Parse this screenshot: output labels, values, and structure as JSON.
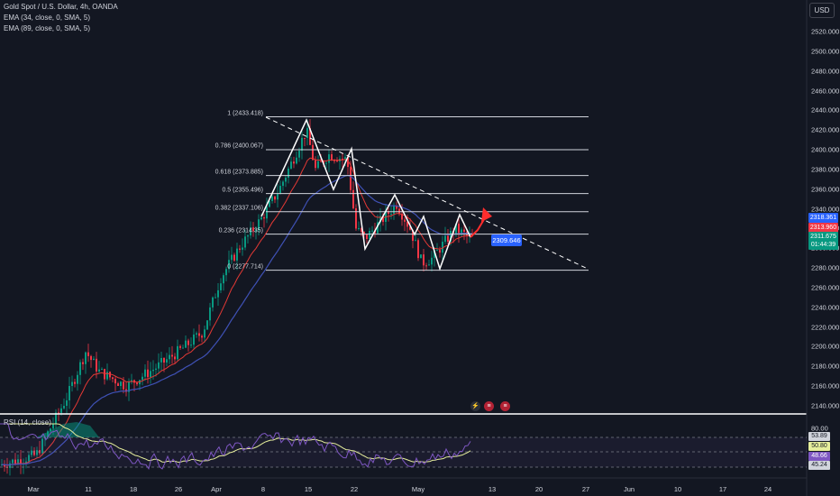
{
  "legend": {
    "symbol": "Gold Spot / U.S. Dollar, 4h, OANDA",
    "ema1": "EMA (34, close, 0, SMA, 5)",
    "ema2": "EMA (89, close, 0, SMA, 5)",
    "rsi": "RSI (14, close)"
  },
  "currency": "USD",
  "price_axis": [
    "2520.000",
    "2500.000",
    "2480.000",
    "2460.000",
    "2440.000",
    "2420.000",
    "2400.000",
    "2380.000",
    "2360.000",
    "2340.000",
    "2320.000",
    "2300.000",
    "2280.000",
    "2260.000",
    "2240.000",
    "2220.000",
    "2200.000",
    "2180.000",
    "2160.000",
    "2140.000"
  ],
  "price_axis_values": [
    2520,
    2500,
    2480,
    2460,
    2440,
    2420,
    2400,
    2380,
    2360,
    2340,
    2320,
    2300,
    2280,
    2260,
    2240,
    2220,
    2200,
    2180,
    2160,
    2140
  ],
  "price_badges": [
    {
      "text": "2318.361",
      "color": "#2962ff"
    },
    {
      "text": "2313.960",
      "color": "#f23645"
    },
    {
      "text": "2311.675",
      "color": "#089981"
    },
    {
      "text": "01:44:39",
      "color": "#089981"
    }
  ],
  "rsi_axis": "80.00",
  "rsi_badges": [
    {
      "text": "53.89",
      "bg": "#d1d4dc",
      "fg": "#131722"
    },
    {
      "text": "50.80",
      "bg": "#e6ee9c",
      "fg": "#131722"
    },
    {
      "text": "48.66",
      "bg": "#7e57c2",
      "fg": "#ffffff"
    },
    {
      "text": "45.24",
      "bg": "#d1d4dc",
      "fg": "#131722"
    }
  ],
  "time_axis": [
    "Mar",
    "11",
    "18",
    "26",
    "Apr",
    "8",
    "15",
    "22",
    "May",
    "13",
    "20",
    "27",
    "Jun",
    "10",
    "17",
    "24"
  ],
  "fib_levels": [
    {
      "label": "1 (2433.418)",
      "value": 2433.418
    },
    {
      "label": "0.786 (2400.067)",
      "value": 2400.067
    },
    {
      "label": "0.618 (2373.885)",
      "value": 2373.885
    },
    {
      "label": "0.5 (2355.496)",
      "value": 2355.496
    },
    {
      "label": "0.382 (2337.106)",
      "value": 2337.106
    },
    {
      "label": "0.236 (2314.35)",
      "value": 2314.35
    },
    {
      "label": "0 (2277.714)",
      "value": 2277.714
    }
  ],
  "target_label": "2309.646",
  "colors": {
    "up": "#089981",
    "down": "#f23645",
    "ema34": "#e53935",
    "ema89": "#3f51b5",
    "rsi": "#7e57c2"
  },
  "events": [
    "lightning-icon",
    "us-flag-icon",
    "us-flag-icon"
  ]
}
